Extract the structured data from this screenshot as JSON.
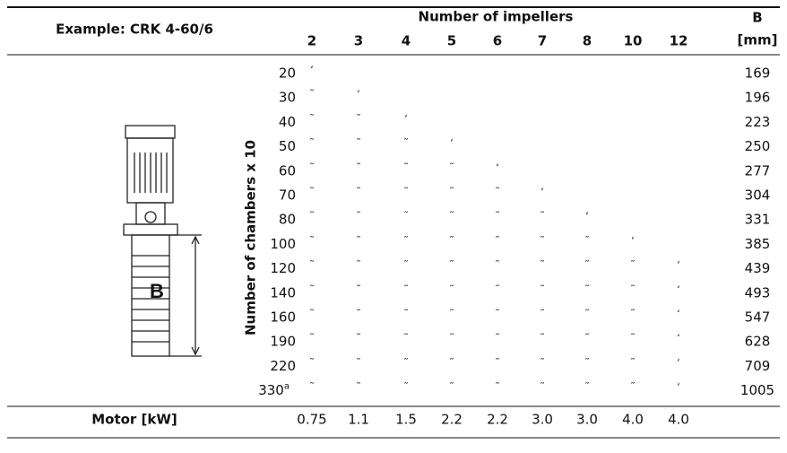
{
  "header": {
    "example": "Example: CRK 4-60/6",
    "impellers_title": "Number of impellers",
    "b_title": "B",
    "b_unit": "[mm]",
    "chambers_title": "Number of chambers x 10",
    "impellers": [
      "2",
      "3",
      "4",
      "5",
      "6",
      "7",
      "8",
      "10",
      "12"
    ]
  },
  "figure": {
    "label": "B"
  },
  "table": {
    "rows": [
      {
        "chambers": "20",
        "marks": [
          "ʻ"
        ],
        "b": "169"
      },
      {
        "chambers": "30",
        "marks": [
          "˜",
          "ʻ"
        ],
        "b": "196"
      },
      {
        "chambers": "40",
        "marks": [
          "˜",
          "˜",
          "ʻ"
        ],
        "b": "223"
      },
      {
        "chambers": "50",
        "marks": [
          "˜",
          "˜",
          "˜",
          "ʻ"
        ],
        "b": "250"
      },
      {
        "chambers": "60",
        "marks": [
          "˜",
          "˜",
          "˜",
          "˜",
          "ʻ"
        ],
        "b": "277"
      },
      {
        "chambers": "70",
        "marks": [
          "˜",
          "˜",
          "˜",
          "˜",
          "˜",
          "ʻ"
        ],
        "b": "304"
      },
      {
        "chambers": "80",
        "marks": [
          "˜",
          "˜",
          "˜",
          "˜",
          "˜",
          "˜",
          "ʻ"
        ],
        "b": "331"
      },
      {
        "chambers": "100",
        "marks": [
          "˜",
          "˜",
          "˜",
          "˜",
          "˜",
          "˜",
          "˜",
          "ʻ"
        ],
        "b": "385"
      },
      {
        "chambers": "120",
        "marks": [
          "˜",
          "˜",
          "˜",
          "˜",
          "˜",
          "˜",
          "˜",
          "˜",
          "ʻ"
        ],
        "b": "439"
      },
      {
        "chambers": "140",
        "marks": [
          "˜",
          "˜",
          "˜",
          "˜",
          "˜",
          "˜",
          "˜",
          "˜",
          "ʻ"
        ],
        "b": "493"
      },
      {
        "chambers": "160",
        "marks": [
          "˜",
          "˜",
          "˜",
          "˜",
          "˜",
          "˜",
          "˜",
          "˜",
          "ʻ"
        ],
        "b": "547"
      },
      {
        "chambers": "190",
        "marks": [
          "˜",
          "˜",
          "˜",
          "˜",
          "˜",
          "˜",
          "˜",
          "˜",
          "ʻ"
        ],
        "b": "628"
      },
      {
        "chambers": "220",
        "marks": [
          "˜",
          "˜",
          "˜",
          "˜",
          "˜",
          "˜",
          "˜",
          "˜",
          "ʻ"
        ],
        "b": "709"
      },
      {
        "chambers": "330",
        "note": "a",
        "marks": [
          "˜",
          "˜",
          "˜",
          "˜",
          "˜",
          "˜",
          "˜",
          "˜",
          "ʻ"
        ],
        "b": "1005"
      }
    ]
  },
  "footer": {
    "label": "Motor [kW]",
    "values": [
      "0.75",
      "1.1",
      "1.5",
      "2.2",
      "2.2",
      "3.0",
      "3.0",
      "4.0",
      "4.0"
    ]
  }
}
